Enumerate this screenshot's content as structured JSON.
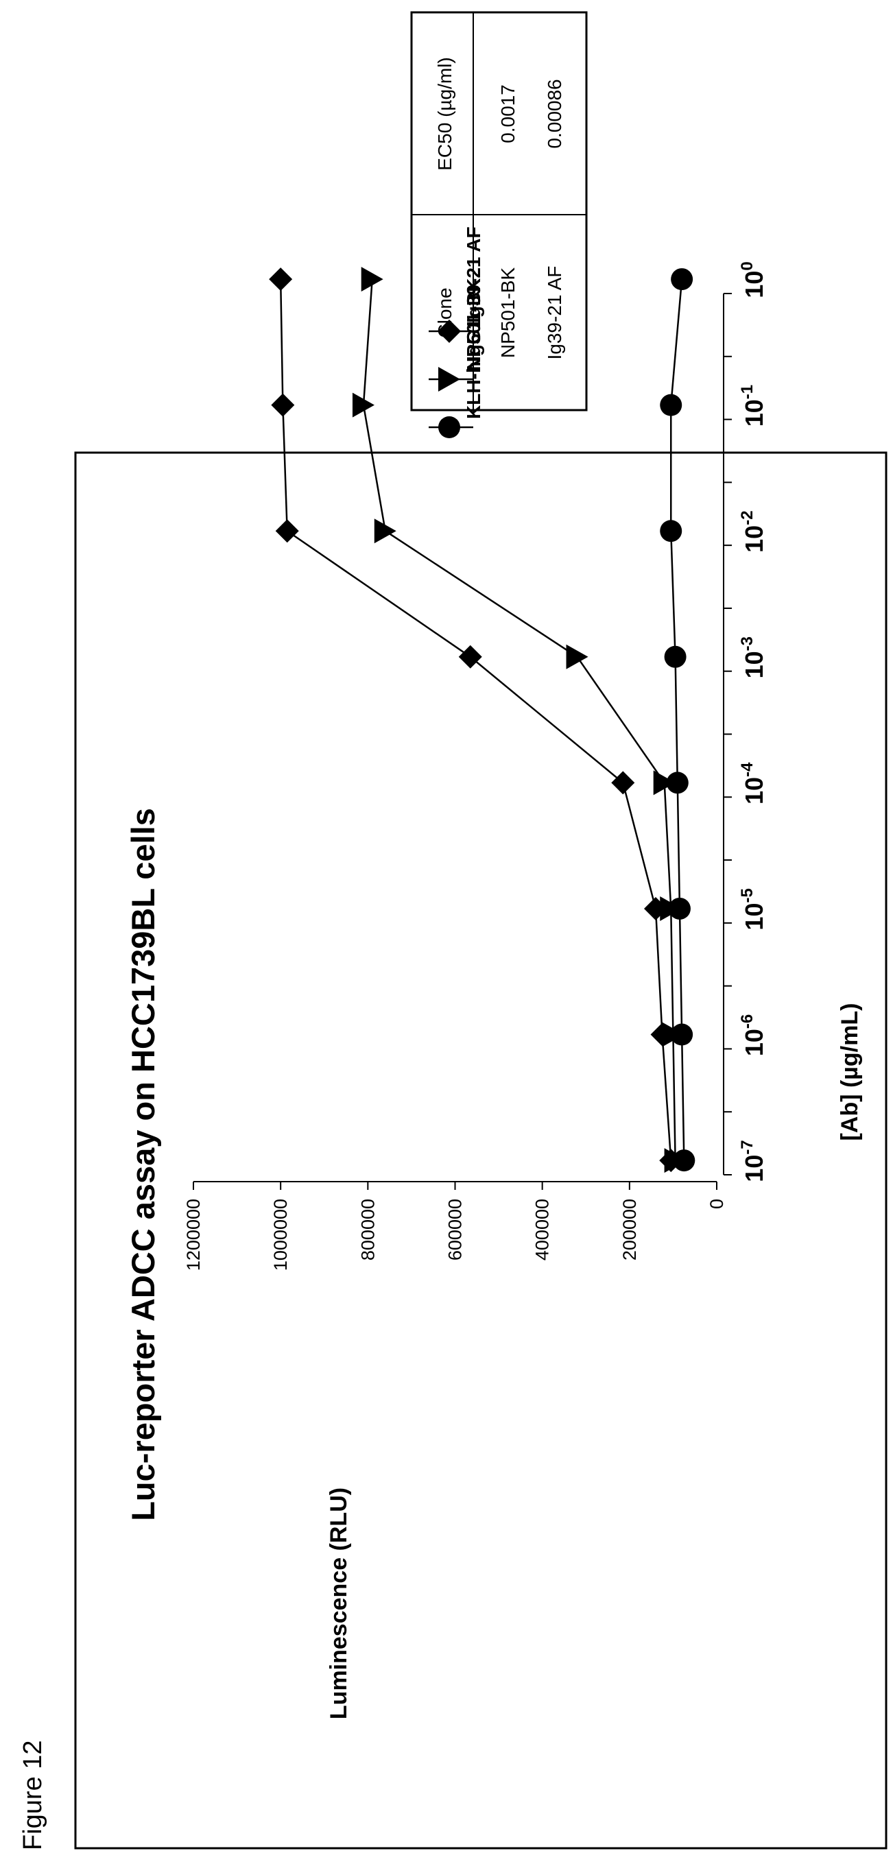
{
  "figure_label": "Figure 12",
  "chart_data": {
    "type": "line",
    "title": "Luc-reporter ADCC assay on HCC1739BL cells",
    "xlabel": "[Ab] (µg/mL)",
    "ylabel": "Luminescence (RLU)",
    "x_scale": "log",
    "xlim": [
      1e-07,
      1
    ],
    "ylim": [
      0,
      1200000
    ],
    "x_ticks": [
      {
        "value": 1e-07,
        "base": "10",
        "exp": "-7"
      },
      {
        "value": 1e-06,
        "base": "10",
        "exp": "-6"
      },
      {
        "value": 1e-05,
        "base": "10",
        "exp": "-5"
      },
      {
        "value": 0.0001,
        "base": "10",
        "exp": "-4"
      },
      {
        "value": 0.001,
        "base": "10",
        "exp": "-3"
      },
      {
        "value": 0.01,
        "base": "10",
        "exp": "-2"
      },
      {
        "value": 0.1,
        "base": "10",
        "exp": "-1"
      },
      {
        "value": 1,
        "base": "10",
        "exp": "0"
      }
    ],
    "y_ticks": [
      {
        "value": 0,
        "label": "0"
      },
      {
        "value": 200000,
        "label": "200000"
      },
      {
        "value": 400000,
        "label": "400000"
      },
      {
        "value": 600000,
        "label": "600000"
      },
      {
        "value": 800000,
        "label": "800000"
      },
      {
        "value": 1000000,
        "label": "1000000"
      },
      {
        "value": 1200000,
        "label": "1200000"
      }
    ],
    "grid": false,
    "legend_position": "upper right",
    "series": [
      {
        "name": "KLH-hIgG1",
        "marker": "circle",
        "x": [
          1.3e-07,
          1.3e-06,
          1.3e-05,
          0.00013,
          0.0013,
          0.013,
          0.13,
          1.3
        ],
        "y": [
          75000,
          80000,
          85000,
          90000,
          95000,
          105000,
          105000,
          80000
        ]
      },
      {
        "name": "NP501-BK",
        "marker": "triangle",
        "x": [
          1.3e-07,
          1.3e-06,
          1.3e-05,
          0.00013,
          0.0013,
          0.013,
          0.13,
          1.3
        ],
        "y": [
          95000,
          100000,
          105000,
          120000,
          320000,
          760000,
          810000,
          790000
        ]
      },
      {
        "name": "Ig39-21 AF",
        "marker": "diamond",
        "x": [
          1.3e-07,
          1.3e-06,
          1.3e-05,
          0.00013,
          0.0013,
          0.013,
          0.13,
          1.3
        ],
        "y": [
          105000,
          125000,
          140000,
          215000,
          565000,
          985000,
          995000,
          1000000
        ]
      }
    ]
  },
  "ec50_table": {
    "headers": [
      "Clone",
      "EC50 (µg/ml)"
    ],
    "rows": [
      [
        "NP501-BK",
        "0.0017"
      ],
      [
        "Ig39-21 AF",
        "0.00086"
      ]
    ]
  }
}
